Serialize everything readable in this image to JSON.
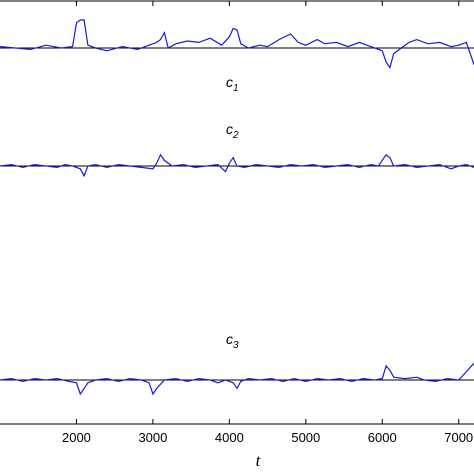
{
  "chart_data": {
    "type": "line",
    "xlabel": "t",
    "x_ticks": [
      "2000",
      "3000",
      "4000",
      "5000",
      "6000",
      "7000"
    ],
    "x_tick_values": [
      2000,
      3000,
      4000,
      5000,
      6000,
      7000
    ],
    "xlim": [
      1000,
      7200
    ],
    "series_color": "#1a1ad6",
    "baseline_color": "#000000",
    "panels": [
      {
        "label_main": "c",
        "label_sub": "1",
        "baseline": 0,
        "points": [
          [
            1000,
            0.05
          ],
          [
            1200,
            0.0
          ],
          [
            1400,
            -0.05
          ],
          [
            1600,
            0.1
          ],
          [
            1800,
            0.0
          ],
          [
            1950,
            0.05
          ],
          [
            2000,
            0.9
          ],
          [
            2050,
            1.0
          ],
          [
            2100,
            1.0
          ],
          [
            2150,
            0.1
          ],
          [
            2250,
            0.0
          ],
          [
            2400,
            -0.1
          ],
          [
            2600,
            0.05
          ],
          [
            2800,
            -0.05
          ],
          [
            2950,
            0.1
          ],
          [
            3050,
            0.2
          ],
          [
            3100,
            0.3
          ],
          [
            3150,
            0.55
          ],
          [
            3200,
            0.0
          ],
          [
            3300,
            0.15
          ],
          [
            3450,
            0.25
          ],
          [
            3600,
            0.2
          ],
          [
            3750,
            0.35
          ],
          [
            3900,
            0.1
          ],
          [
            4000,
            0.4
          ],
          [
            4050,
            0.7
          ],
          [
            4100,
            0.65
          ],
          [
            4150,
            0.15
          ],
          [
            4250,
            0.0
          ],
          [
            4400,
            0.1
          ],
          [
            4500,
            0.05
          ],
          [
            4650,
            0.3
          ],
          [
            4800,
            0.5
          ],
          [
            4900,
            0.2
          ],
          [
            5000,
            0.1
          ],
          [
            5150,
            0.3
          ],
          [
            5250,
            0.15
          ],
          [
            5400,
            0.2
          ],
          [
            5550,
            0.05
          ],
          [
            5700,
            0.2
          ],
          [
            5850,
            0.05
          ],
          [
            6000,
            -0.1
          ],
          [
            6050,
            -0.5
          ],
          [
            6100,
            -0.7
          ],
          [
            6150,
            -0.2
          ],
          [
            6250,
            0.0
          ],
          [
            6350,
            0.2
          ],
          [
            6450,
            0.3
          ],
          [
            6600,
            0.15
          ],
          [
            6750,
            0.2
          ],
          [
            6900,
            0.05
          ],
          [
            7000,
            0.1
          ],
          [
            7100,
            0.2
          ],
          [
            7200,
            -0.6
          ]
        ]
      },
      {
        "label_main": "c",
        "label_sub": "2",
        "baseline": 0,
        "points": [
          [
            1000,
            0.0
          ],
          [
            1150,
            0.05
          ],
          [
            1300,
            -0.05
          ],
          [
            1450,
            0.05
          ],
          [
            1600,
            0.0
          ],
          [
            1750,
            -0.05
          ],
          [
            1850,
            0.05
          ],
          [
            1950,
            0.0
          ],
          [
            2050,
            -0.1
          ],
          [
            2100,
            -0.35
          ],
          [
            2150,
            0.0
          ],
          [
            2250,
            0.05
          ],
          [
            2400,
            -0.05
          ],
          [
            2550,
            0.05
          ],
          [
            2700,
            0.0
          ],
          [
            2850,
            -0.05
          ],
          [
            3000,
            -0.1
          ],
          [
            3050,
            0.1
          ],
          [
            3100,
            0.4
          ],
          [
            3150,
            0.2
          ],
          [
            3250,
            0.0
          ],
          [
            3400,
            0.05
          ],
          [
            3550,
            -0.05
          ],
          [
            3700,
            0.0
          ],
          [
            3850,
            0.05
          ],
          [
            3950,
            -0.2
          ],
          [
            4000,
            0.1
          ],
          [
            4050,
            0.3
          ],
          [
            4100,
            0.0
          ],
          [
            4200,
            -0.05
          ],
          [
            4350,
            0.05
          ],
          [
            4500,
            0.0
          ],
          [
            4650,
            -0.05
          ],
          [
            4800,
            0.05
          ],
          [
            4950,
            0.0
          ],
          [
            5100,
            0.05
          ],
          [
            5250,
            -0.05
          ],
          [
            5400,
            0.0
          ],
          [
            5550,
            0.05
          ],
          [
            5700,
            -0.05
          ],
          [
            5850,
            0.05
          ],
          [
            5950,
            0.0
          ],
          [
            6050,
            0.4
          ],
          [
            6100,
            0.3
          ],
          [
            6150,
            0.0
          ],
          [
            6300,
            0.05
          ],
          [
            6450,
            -0.05
          ],
          [
            6600,
            0.0
          ],
          [
            6750,
            0.05
          ],
          [
            6900,
            -0.1
          ],
          [
            7000,
            0.0
          ],
          [
            7100,
            0.05
          ],
          [
            7200,
            -0.05
          ]
        ]
      },
      {
        "label_main": "c",
        "label_sub": "3",
        "baseline": 0,
        "points": [
          [
            1000,
            0.0
          ],
          [
            1150,
            0.05
          ],
          [
            1300,
            -0.05
          ],
          [
            1450,
            0.05
          ],
          [
            1600,
            0.0
          ],
          [
            1750,
            0.05
          ],
          [
            1900,
            -0.05
          ],
          [
            2000,
            -0.1
          ],
          [
            2050,
            -0.5
          ],
          [
            2100,
            -0.3
          ],
          [
            2150,
            -0.1
          ],
          [
            2250,
            0.0
          ],
          [
            2400,
            0.05
          ],
          [
            2550,
            -0.05
          ],
          [
            2700,
            0.05
          ],
          [
            2850,
            0.0
          ],
          [
            2950,
            -0.1
          ],
          [
            3000,
            -0.5
          ],
          [
            3050,
            -0.3
          ],
          [
            3150,
            0.0
          ],
          [
            3300,
            0.05
          ],
          [
            3450,
            -0.05
          ],
          [
            3600,
            0.05
          ],
          [
            3750,
            0.0
          ],
          [
            3850,
            -0.1
          ],
          [
            3950,
            0.0
          ],
          [
            4050,
            -0.1
          ],
          [
            4100,
            -0.3
          ],
          [
            4150,
            -0.05
          ],
          [
            4250,
            0.05
          ],
          [
            4400,
            0.0
          ],
          [
            4550,
            0.05
          ],
          [
            4700,
            -0.05
          ],
          [
            4850,
            0.05
          ],
          [
            5000,
            -0.05
          ],
          [
            5150,
            0.05
          ],
          [
            5300,
            0.0
          ],
          [
            5450,
            0.05
          ],
          [
            5600,
            -0.05
          ],
          [
            5750,
            0.05
          ],
          [
            5900,
            0.0
          ],
          [
            6000,
            0.05
          ],
          [
            6050,
            0.5
          ],
          [
            6100,
            0.35
          ],
          [
            6150,
            0.1
          ],
          [
            6300,
            0.05
          ],
          [
            6450,
            0.1
          ],
          [
            6550,
            0.0
          ],
          [
            6700,
            -0.05
          ],
          [
            6850,
            0.05
          ],
          [
            7000,
            0.0
          ],
          [
            7100,
            0.3
          ],
          [
            7200,
            0.6
          ]
        ]
      }
    ]
  }
}
